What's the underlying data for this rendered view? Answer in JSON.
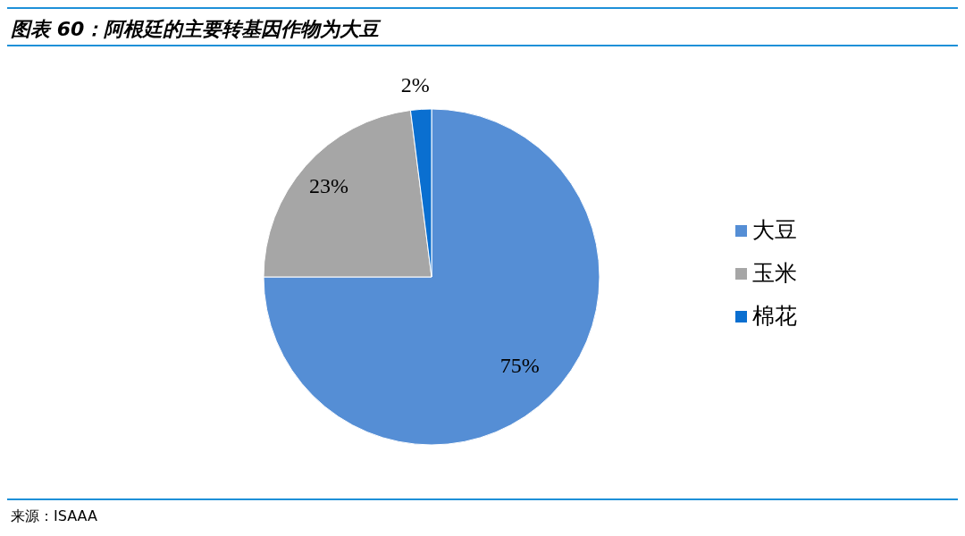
{
  "chart_data": {
    "type": "pie",
    "title": "图表 60：阿根廷的主要转基因作物为大豆",
    "categories": [
      "大豆",
      "玉米",
      "棉花"
    ],
    "values": [
      75,
      23,
      2
    ],
    "colors": [
      "#558ed5",
      "#a6a6a6",
      "#0a6fd0"
    ],
    "value_labels": [
      "75%",
      "23%",
      "2%"
    ],
    "legend": "right",
    "annotations": [
      "来源：ISAAA"
    ]
  }
}
